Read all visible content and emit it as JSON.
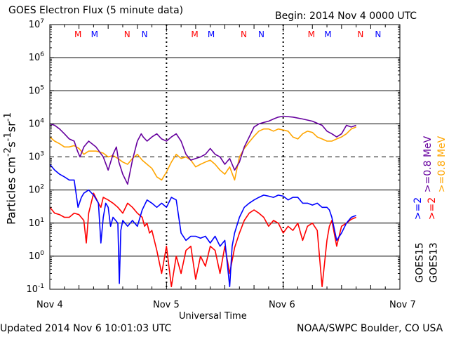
{
  "header": {
    "title": "GOES Electron Flux (5 minute data)",
    "begin": "Begin: 2014 Nov 4 0000 UTC"
  },
  "footer": {
    "updated": "Updated 2014 Nov  6 10:01:03 UTC",
    "credit": "NOAA/SWPC Boulder, CO USA"
  },
  "right_labels": {
    "goes13": "GOES13",
    "goes15": "GOES15",
    "ge2_13": ">=2",
    "ge2_15": ">=2",
    "ge08_13": ">=0.8  MeV",
    "ge08_15": ">=0.8  MeV"
  },
  "colors": {
    "ge08_goes13": "#ffa500",
    "ge08_goes15": "#66009e",
    "ge2_goes13": "#ff0000",
    "ge2_goes15": "#0000ff",
    "m_marker": "#ff0000",
    "n_marker": "#0000ff"
  },
  "chart_data": {
    "type": "line",
    "title": "GOES Electron Flux (5 minute data)",
    "xlabel": "Universal Time",
    "ylabel": "Particles cm-2s-1sr-1",
    "y_scale": "log",
    "ylim": [
      0.1,
      10000000
    ],
    "y_ticks": [
      0.1,
      1,
      10,
      100,
      1000,
      10000,
      100000,
      1000000,
      10000000
    ],
    "x_ticks": [
      "Nov 4",
      "Nov 5",
      "Nov 6",
      "Nov 7"
    ],
    "xlim_hours_from_2014_11_04_0000": [
      0,
      72
    ],
    "grid": true,
    "reference_line": {
      "y": 1000,
      "style": "dashed"
    },
    "day_markers": [
      {
        "label": "M",
        "hour": 5.8,
        "color": "red"
      },
      {
        "label": "M",
        "hour": 9.2,
        "color": "blue"
      },
      {
        "label": "N",
        "hour": 15.9,
        "color": "red"
      },
      {
        "label": "N",
        "hour": 19.5,
        "color": "blue"
      },
      {
        "label": "M",
        "hour": 29.8,
        "color": "red"
      },
      {
        "label": "M",
        "hour": 33.2,
        "color": "blue"
      },
      {
        "label": "N",
        "hour": 39.9,
        "color": "red"
      },
      {
        "label": "N",
        "hour": 43.5,
        "color": "blue"
      },
      {
        "label": "M",
        "hour": 53.8,
        "color": "red"
      },
      {
        "label": "M",
        "hour": 57.2,
        "color": "blue"
      },
      {
        "label": "N",
        "hour": 63.9,
        "color": "red"
      },
      {
        "label": "N",
        "hour": 67.5,
        "color": "blue"
      }
    ],
    "series": [
      {
        "name": "GOES15 >=0.8 MeV",
        "x": [
          0,
          1,
          2,
          3,
          4,
          5,
          5.7,
          6.2,
          7,
          8,
          9.5,
          11,
          12,
          13,
          13.7,
          14.2,
          15,
          16,
          17,
          18,
          18.8,
          19.2,
          20,
          21,
          22,
          23,
          24,
          25,
          26,
          27,
          28,
          29,
          30,
          31,
          32,
          33,
          34,
          35,
          36,
          37,
          38,
          39,
          40,
          41,
          42,
          43,
          44,
          45,
          46,
          47,
          48,
          50,
          52,
          54,
          56,
          57,
          58,
          59,
          60,
          61,
          62,
          63
        ],
        "y": [
          10000,
          9000,
          7000,
          5000,
          3500,
          3000,
          1500,
          1000,
          2000,
          3000,
          2000,
          1000,
          400,
          1200,
          2000,
          700,
          300,
          150,
          800,
          3000,
          5000,
          4000,
          3000,
          4000,
          5000,
          3500,
          3000,
          4000,
          5000,
          3000,
          1200,
          800,
          900,
          1000,
          1200,
          1800,
          1200,
          1000,
          600,
          900,
          400,
          700,
          2000,
          4000,
          8000,
          10000,
          11000,
          12000,
          14000,
          16000,
          17000,
          16000,
          14000,
          12000,
          9000,
          6000,
          5000,
          4000,
          5000,
          9000,
          8000,
          9000
        ]
      },
      {
        "name": "GOES13 >=0.8 MeV",
        "x": [
          0,
          1,
          2,
          3,
          4,
          5,
          6,
          7,
          8,
          9.5,
          11,
          12,
          13,
          14,
          15,
          16,
          17,
          18,
          19,
          20,
          21,
          22,
          23,
          24,
          25,
          26,
          27,
          28,
          29,
          30,
          31,
          32,
          33,
          34,
          35,
          36,
          37,
          38,
          39,
          40,
          41,
          42,
          43,
          44,
          45,
          46,
          47,
          48,
          49,
          50,
          51,
          52,
          53,
          54,
          55,
          56,
          57,
          58,
          59,
          60,
          61,
          62,
          63
        ],
        "y": [
          4000,
          3000,
          2500,
          2000,
          2000,
          2200,
          1800,
          1200,
          1500,
          1500,
          1300,
          1000,
          1100,
          900,
          700,
          600,
          900,
          1200,
          800,
          600,
          450,
          250,
          200,
          350,
          700,
          1200,
          900,
          1000,
          800,
          500,
          600,
          700,
          800,
          600,
          400,
          300,
          500,
          200,
          1000,
          1800,
          2800,
          4200,
          6000,
          7000,
          7000,
          6000,
          7000,
          6500,
          6000,
          4000,
          3500,
          5000,
          6000,
          5500,
          4000,
          3500,
          3000,
          3000,
          3500,
          4000,
          5000,
          7000,
          8000
        ]
      },
      {
        "name": "GOES15 >=2 MeV",
        "x": [
          0,
          1,
          2,
          3,
          4,
          5,
          5.4,
          5.8,
          6.5,
          7,
          8,
          9,
          10,
          10.5,
          11,
          11.5,
          12,
          12.5,
          13,
          14,
          14.3,
          14.6,
          15,
          16,
          17,
          18,
          19,
          20,
          21,
          22,
          23,
          24,
          25,
          26,
          27,
          28,
          29,
          30,
          31,
          32,
          33,
          34,
          35,
          36,
          37,
          37.5,
          38,
          39,
          40,
          41,
          42,
          43,
          44,
          45,
          46,
          47,
          48,
          49,
          50,
          51,
          52,
          53,
          54,
          55,
          56,
          57,
          57.5,
          58,
          59,
          60,
          61,
          62,
          63
        ],
        "y": [
          600,
          400,
          300,
          250,
          200,
          200,
          80,
          30,
          60,
          80,
          100,
          70,
          40,
          2.5,
          15,
          40,
          30,
          8,
          15,
          10,
          0.15,
          6,
          12,
          8,
          12,
          8,
          25,
          50,
          40,
          30,
          40,
          30,
          60,
          50,
          5,
          3,
          4,
          4,
          3.5,
          4,
          2.5,
          4,
          2,
          3,
          0.12,
          2,
          5,
          15,
          30,
          40,
          50,
          60,
          70,
          65,
          60,
          70,
          65,
          50,
          60,
          60,
          40,
          40,
          35,
          40,
          30,
          30,
          25,
          15,
          3,
          5,
          10,
          15,
          17
        ]
      },
      {
        "name": "GOES13 >=2 MeV",
        "x": [
          0,
          1,
          2,
          3,
          4,
          5,
          6,
          7,
          7.5,
          8,
          9,
          10,
          10.5,
          11,
          12,
          13,
          14,
          15,
          16,
          17,
          18,
          19,
          19.5,
          20,
          20.5,
          21,
          22,
          23,
          24,
          25,
          26,
          27,
          28,
          29,
          30,
          31,
          32,
          33,
          34,
          35,
          36,
          37,
          38,
          39,
          40,
          41,
          42,
          43,
          44,
          45,
          46,
          47,
          48,
          49,
          50,
          51,
          52,
          53,
          54,
          55,
          56,
          57,
          57.5,
          58,
          59,
          60,
          61,
          62,
          63
        ],
        "y": [
          30,
          20,
          18,
          15,
          15,
          20,
          18,
          12,
          2.5,
          20,
          80,
          40,
          30,
          60,
          50,
          40,
          30,
          20,
          40,
          30,
          20,
          15,
          8,
          10,
          5,
          6,
          1.5,
          0.3,
          2,
          0.12,
          1,
          0.3,
          1.5,
          2,
          0.2,
          1,
          0.5,
          2,
          1.5,
          0.3,
          2,
          0.3,
          1.8,
          5,
          12,
          20,
          25,
          20,
          15,
          8,
          12,
          10,
          5,
          8,
          6,
          10,
          3,
          8,
          10,
          6,
          0.12,
          3,
          8,
          12,
          2,
          8,
          10,
          13,
          15
        ]
      }
    ]
  }
}
